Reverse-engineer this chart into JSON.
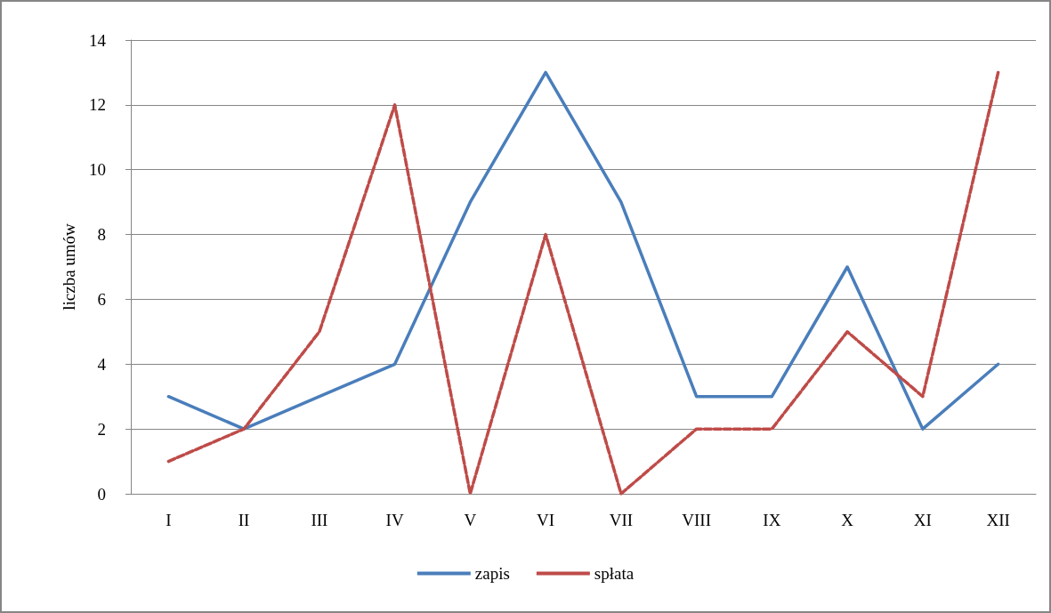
{
  "chart_data": {
    "type": "line",
    "ylabel": "liczba umów",
    "categories": [
      "I",
      "II",
      "III",
      "IV",
      "V",
      "VI",
      "VII",
      "VIII",
      "IX",
      "X",
      "XI",
      "XII"
    ],
    "series": [
      {
        "name": "zapis",
        "color": "#4a7ebb",
        "line_style": "solid",
        "values": [
          3,
          2,
          3,
          4,
          9,
          13,
          9,
          3,
          3,
          7,
          2,
          4
        ]
      },
      {
        "name": "spłata",
        "color": "#be4b48",
        "line_style": "dashed",
        "values": [
          1,
          2,
          5,
          12,
          0,
          8,
          0,
          2,
          2,
          5,
          3,
          13
        ]
      }
    ],
    "ylim": [
      0,
      14
    ],
    "yticks": [
      0,
      2,
      4,
      6,
      8,
      10,
      12,
      14
    ],
    "grid": "y",
    "legend": "bottom",
    "marker": "none"
  }
}
